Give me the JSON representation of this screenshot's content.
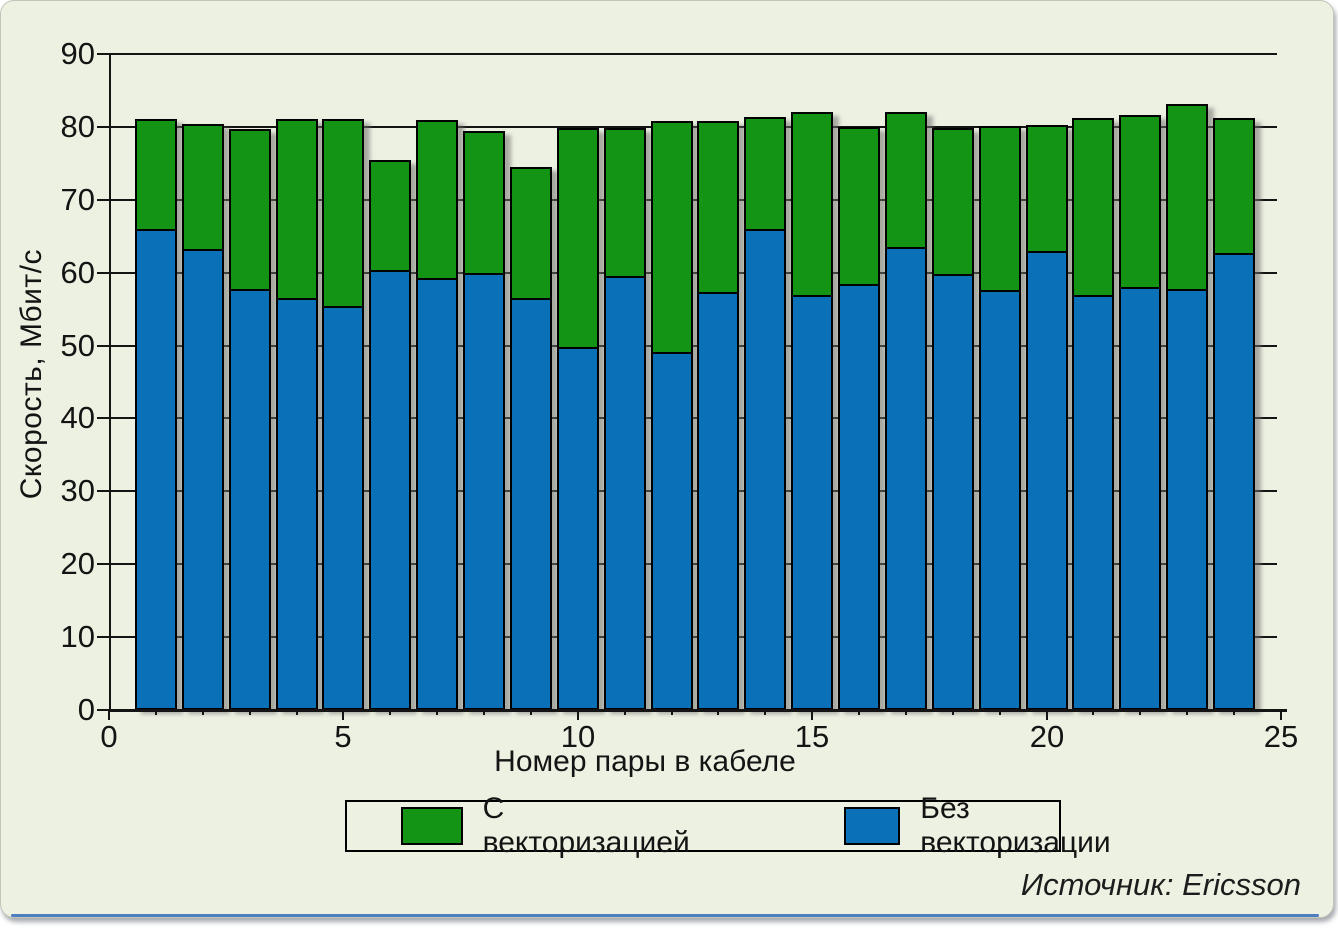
{
  "page": {
    "source_note": "Источник: Ericsson"
  },
  "colors": {
    "green": "#149414",
    "blue": "#0a70b8",
    "background": "#edf1e2",
    "axis": "#141414",
    "bottom_strip": "#4d7ec0"
  },
  "chart_data": {
    "type": "bar",
    "overlay": "green bars show total value (with vectorization); blue bars are drawn in front from zero (without vectorization)",
    "title": "",
    "xlabel": "Номер пары в кабеле",
    "ylabel": "Скорость, Мбит/с",
    "ylim": [
      0,
      90
    ],
    "ytick_labels": [
      "0",
      "10",
      "20",
      "30",
      "40",
      "50",
      "60",
      "70",
      "80",
      "90"
    ],
    "xlim": [
      0,
      25
    ],
    "xtick_labels": [
      "0",
      "5",
      "10",
      "15",
      "20",
      "25"
    ],
    "xtick_values": [
      0,
      5,
      10,
      15,
      20,
      25
    ],
    "grid": "horizontal lines every 10",
    "legend_position": "bottom center, boxed",
    "categories": [
      1,
      2,
      3,
      4,
      5,
      6,
      7,
      8,
      9,
      10,
      11,
      12,
      13,
      14,
      15,
      16,
      17,
      18,
      19,
      20,
      21,
      22,
      23,
      24
    ],
    "series": [
      {
        "name": "С векторизацией",
        "color_key": "green",
        "values": [
          81.1,
          80.4,
          79.7,
          81.1,
          81.1,
          75.4,
          81.0,
          79.4,
          74.5,
          79.9,
          79.9,
          80.8,
          80.8,
          81.3,
          82.1,
          80.0,
          82.1,
          79.8,
          80.1,
          80.2,
          81.2,
          81.6,
          83.2,
          81.2
        ]
      },
      {
        "name": "Без векторизации",
        "color_key": "blue",
        "values": [
          66.0,
          63.2,
          57.7,
          56.5,
          55.4,
          60.4,
          59.3,
          59.9,
          56.5,
          49.8,
          59.5,
          49.1,
          57.4,
          66.0,
          57.0,
          58.4,
          63.5,
          59.8,
          57.6,
          63.0,
          56.9,
          58.0,
          57.8,
          62.7
        ]
      }
    ]
  }
}
